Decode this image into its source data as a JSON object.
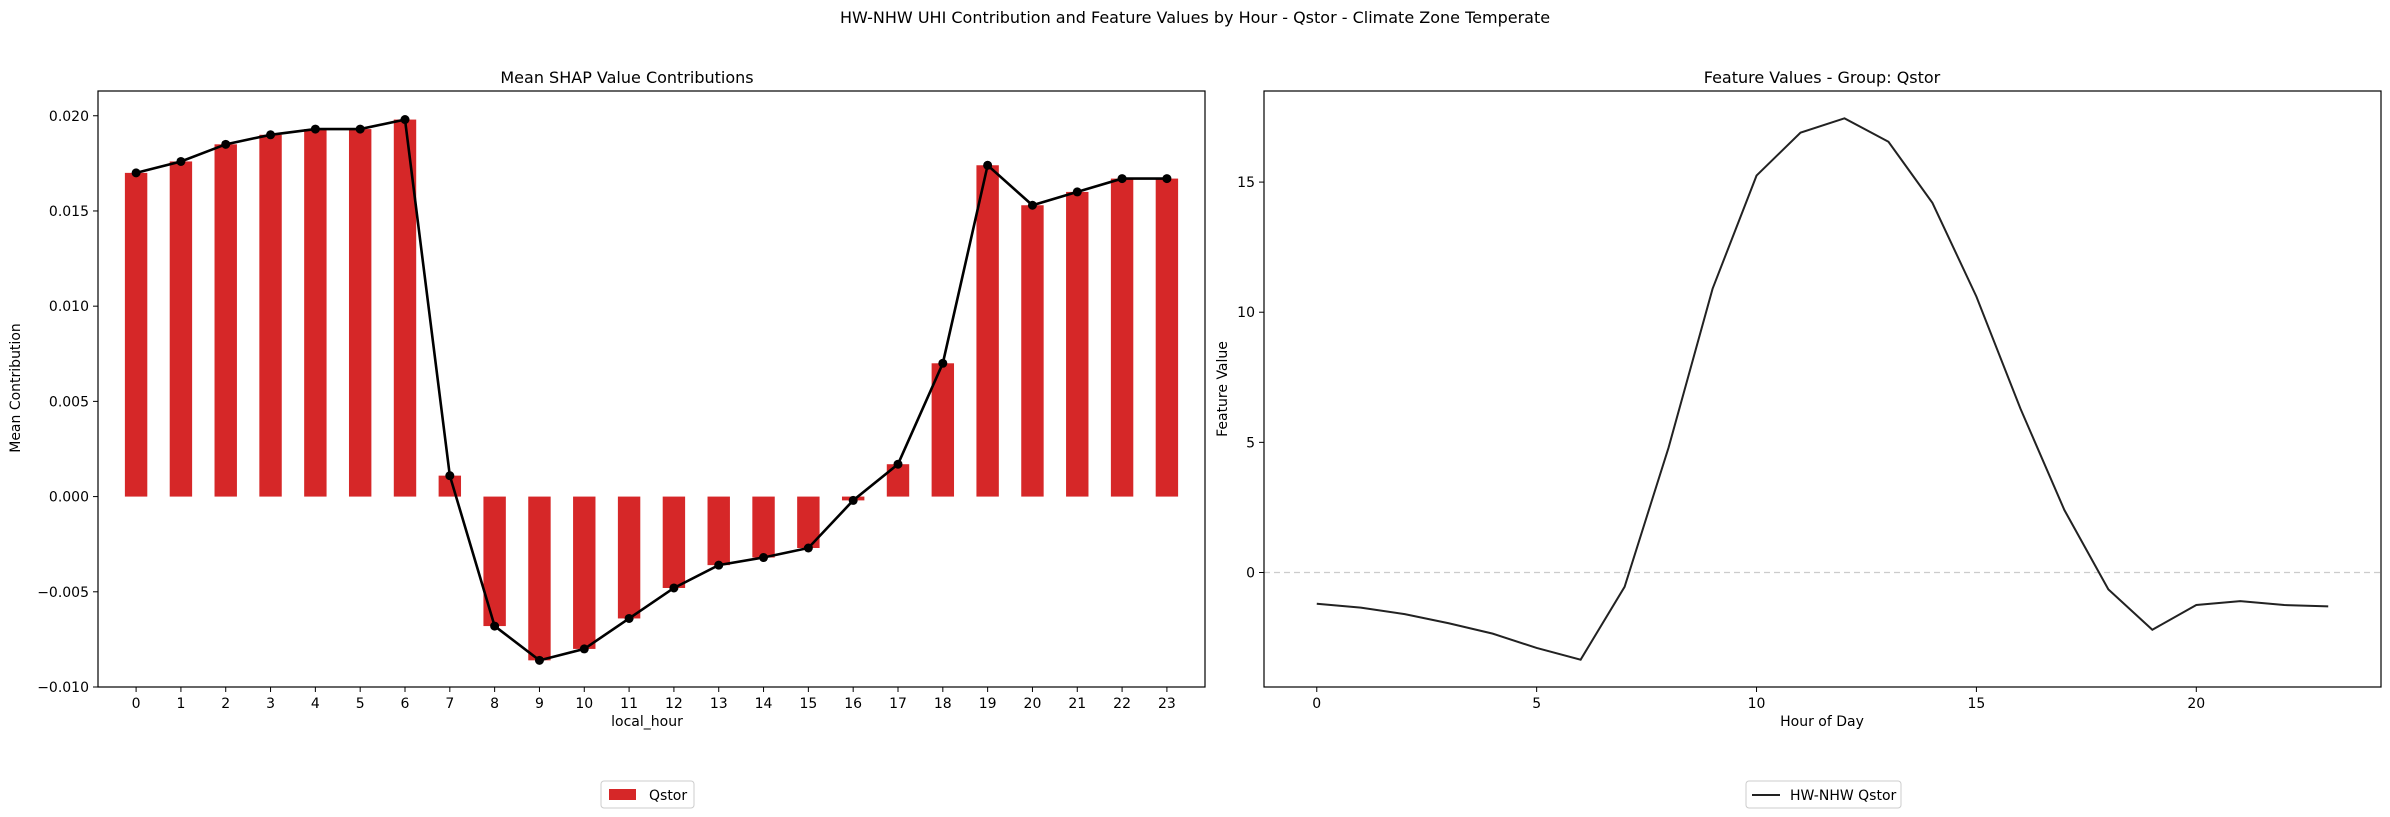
{
  "suptitle": "HW-NHW UHI Contribution and Feature Values by Hour - Qstor - Climate Zone Temperate",
  "chart_data": [
    {
      "type": "bar",
      "title": "Mean SHAP Value Contributions",
      "xlabel": "local_hour",
      "ylabel": "Mean Contribution",
      "categories": [
        "0",
        "1",
        "2",
        "3",
        "4",
        "5",
        "6",
        "7",
        "8",
        "9",
        "10",
        "11",
        "12",
        "13",
        "14",
        "15",
        "16",
        "17",
        "18",
        "19",
        "20",
        "21",
        "22",
        "23"
      ],
      "series": [
        {
          "name": "Qstor",
          "color": "#d62728",
          "values": [
            0.017,
            0.0176,
            0.0185,
            0.019,
            0.0193,
            0.0193,
            0.0198,
            0.0011,
            -0.0068,
            -0.0086,
            -0.008,
            -0.0064,
            -0.0048,
            -0.0036,
            -0.0032,
            -0.0027,
            -0.0002,
            0.0017,
            0.007,
            0.0174,
            0.0153,
            0.016,
            0.0167,
            0.0167
          ]
        }
      ],
      "overlay_line": {
        "color": "#000000",
        "marker": "circle"
      },
      "ylim": [
        -0.01,
        0.0213
      ],
      "yticks": [
        -0.01,
        -0.005,
        0.0,
        0.005,
        0.01,
        0.015,
        0.02
      ],
      "ytick_labels": [
        "−0.010",
        "−0.005",
        "0.000",
        "0.005",
        "0.010",
        "0.015",
        "0.020"
      ],
      "legend": {
        "position": "bottom-center",
        "entries": [
          "Qstor"
        ]
      },
      "grid": false
    },
    {
      "type": "line",
      "title": "Feature Values - Group: Qstor",
      "xlabel": "Hour of Day",
      "ylabel": "Feature Value",
      "x": [
        0,
        1,
        2,
        3,
        4,
        5,
        6,
        7,
        8,
        9,
        10,
        11,
        12,
        13,
        14,
        15,
        16,
        17,
        18,
        19,
        20,
        21,
        22,
        23
      ],
      "series": [
        {
          "name": "HW-NHW Qstor",
          "color": "#222222",
          "values": [
            -1.2,
            -1.35,
            -1.6,
            -1.95,
            -2.35,
            -2.9,
            -3.35,
            -0.55,
            4.8,
            10.9,
            15.25,
            16.9,
            17.45,
            16.55,
            14.2,
            10.6,
            6.3,
            2.4,
            -0.65,
            -2.2,
            -1.25,
            -1.1,
            -1.25,
            -1.3
          ]
        }
      ],
      "xlim": [
        -1.2,
        24.2
      ],
      "ylim": [
        -4.4,
        18.5
      ],
      "xticks": [
        0,
        5,
        10,
        15,
        20
      ],
      "xtick_labels": [
        "0",
        "5",
        "10",
        "15",
        "20"
      ],
      "yticks": [
        0,
        5,
        10,
        15
      ],
      "ytick_labels": [
        "0",
        "5",
        "10",
        "15"
      ],
      "reference_line": {
        "y": 0,
        "style": "dashed",
        "color": "#cccccc"
      },
      "legend": {
        "position": "bottom-center",
        "entries": [
          "HW-NHW Qstor"
        ]
      },
      "grid": false
    }
  ]
}
